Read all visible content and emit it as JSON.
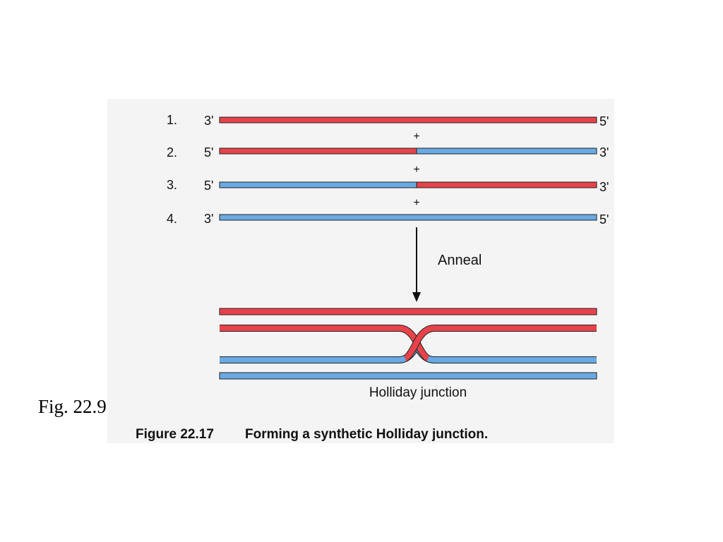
{
  "figure_label": "Fig. 22.9",
  "rows": [
    {
      "number": "1.",
      "left_end": "3'",
      "right_end": "5'"
    },
    {
      "number": "2.",
      "left_end": "5'",
      "right_end": "3'"
    },
    {
      "number": "3.",
      "left_end": "5'",
      "right_end": "3'"
    },
    {
      "number": "4.",
      "left_end": "3'",
      "right_end": "5'"
    }
  ],
  "plus_signs": [
    "+",
    "+",
    "+"
  ],
  "arrow_label": "Anneal",
  "junction_label": "Holliday junction",
  "caption": {
    "number": "Figure 22.17",
    "text": "Forming a synthetic Holliday junction."
  }
}
